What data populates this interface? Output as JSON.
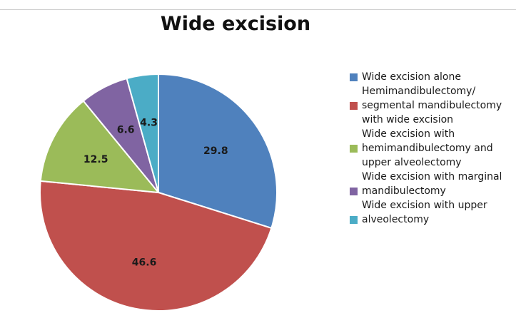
{
  "chart_data": {
    "type": "pie",
    "title": "Wide excision",
    "slices": [
      {
        "label": "Wide excision alone",
        "value": 29.8,
        "color": "#4F81BD"
      },
      {
        "label": "Hemimandibulectomy/\nsegmental  mandibulectomy\nwith wide excision",
        "value": 46.6,
        "color": "#C0504D"
      },
      {
        "label": "Wide excision with\nhemimandibulectomy and\nupper alveolectomy",
        "value": 12.5,
        "color": "#9BBB59"
      },
      {
        "label": "Wide excision with marginal\nmandibulectomy",
        "value": 6.6,
        "color": "#8064A2"
      },
      {
        "label": "Wide excision with upper\nalveolectomy",
        "value": 4.3,
        "color": "#4BACC6"
      }
    ],
    "legend_position": "right"
  }
}
